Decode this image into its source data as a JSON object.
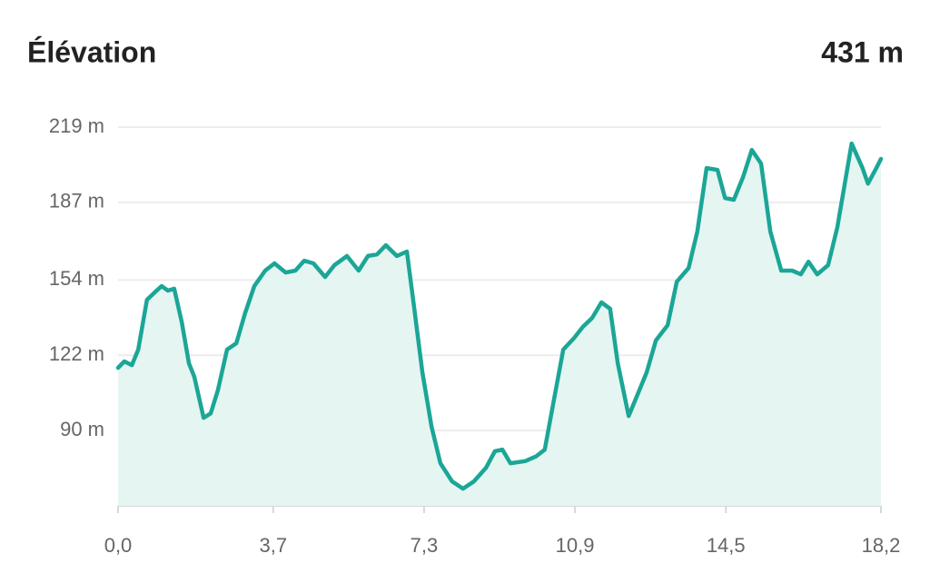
{
  "chart_data": {
    "type": "area",
    "title": "Élévation",
    "summary": "431 m",
    "color": "#1ba696",
    "fill": "#e5f5f2",
    "grid": true,
    "xlim": [
      0,
      18.2
    ],
    "ylim": [
      58,
      219
    ],
    "xticks": [
      {
        "value": 0,
        "label": "0,0"
      },
      {
        "value": 3.7,
        "label": "3,7"
      },
      {
        "value": 7.3,
        "label": "7,3"
      },
      {
        "value": 10.9,
        "label": "10,9"
      },
      {
        "value": 14.5,
        "label": "14,5"
      },
      {
        "value": 18.2,
        "label": "18,2"
      }
    ],
    "yticks": [
      {
        "value": 219,
        "label": "219 m"
      },
      {
        "value": 187,
        "label": "187 m"
      },
      {
        "value": 154,
        "label": "154 m"
      },
      {
        "value": 122,
        "label": "122 m"
      },
      {
        "value": 90,
        "label": "90 m"
      }
    ],
    "x": [
      0,
      0.15,
      0.33,
      0.48,
      0.69,
      0.87,
      1.04,
      1.19,
      1.34,
      1.52,
      1.69,
      1.82,
      2.04,
      2.21,
      2.38,
      2.6,
      2.82,
      3.03,
      3.25,
      3.51,
      3.73,
      4.0,
      4.23,
      4.44,
      4.66,
      4.94,
      5.16,
      5.46,
      5.74,
      5.96,
      6.18,
      6.39,
      6.65,
      6.89,
      7.04,
      7.26,
      7.48,
      7.69,
      7.97,
      8.23,
      8.49,
      8.78,
      8.99,
      9.17,
      9.36,
      9.71,
      9.97,
      10.18,
      10.4,
      10.62,
      10.88,
      11.09,
      11.31,
      11.53,
      11.74,
      11.92,
      12.18,
      12.39,
      12.61,
      12.83,
      13.11,
      13.33,
      13.61,
      13.82,
      14.04,
      14.3,
      14.48,
      14.69,
      14.91,
      15.12,
      15.34,
      15.56,
      15.82,
      16.08,
      16.29,
      16.47,
      16.68,
      16.94,
      17.16,
      17.5,
      17.76,
      17.89,
      18.09,
      18.2
    ],
    "values": [
      116.7,
      119.4,
      117.8,
      124.4,
      145.6,
      148.7,
      151.4,
      149.5,
      150.3,
      136,
      118.6,
      112.8,
      95.4,
      97.3,
      107,
      124.4,
      127.1,
      139.8,
      151.4,
      158,
      161.1,
      157.2,
      158,
      162.2,
      161.1,
      155.3,
      160.3,
      164.2,
      158,
      164.2,
      164.9,
      168.8,
      164.2,
      166.1,
      145.6,
      114.7,
      91.6,
      76.1,
      68.4,
      65.3,
      68.4,
      74.2,
      81.2,
      81.9,
      76.1,
      77,
      79,
      81.9,
      103.2,
      124.4,
      129.4,
      134.1,
      137.9,
      144.5,
      141.8,
      118.6,
      96.2,
      105.1,
      114.7,
      128.3,
      134.8,
      153.3,
      159.1,
      174.6,
      201.6,
      200.8,
      188.9,
      188.1,
      197.8,
      209.3,
      203.5,
      174.6,
      158,
      158,
      156.4,
      161.8,
      156.4,
      160.3,
      176.5,
      212,
      201.6,
      195,
      201.6,
      205.5
    ]
  }
}
